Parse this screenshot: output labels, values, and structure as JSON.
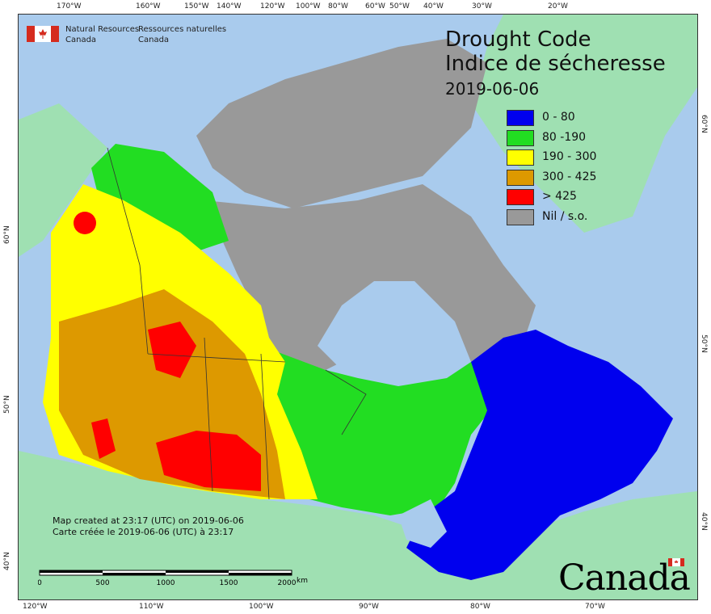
{
  "title": {
    "line1": "Drought Code",
    "line2": "Indice de sécheresse",
    "date": "2019-06-06"
  },
  "agency": {
    "en_line1": "Natural Resources",
    "en_line2": "Canada",
    "fr_line1": "Ressources naturelles",
    "fr_line2": "Canada"
  },
  "legend": [
    {
      "label": "0 - 80",
      "color": "#0000ee"
    },
    {
      "label": "80 -190",
      "color": "#22dd22"
    },
    {
      "label": "190 - 300",
      "color": "#ffff00"
    },
    {
      "label": "300 - 425",
      "color": "#dd9900"
    },
    {
      "label": "> 425",
      "color": "#ff0000"
    },
    {
      "label": "Nil / s.o.",
      "color": "#999999"
    }
  ],
  "credit": {
    "en": "Map created at 23:17 (UTC) on 2019-06-06",
    "fr": "Carte créée le 2019-06-06 (UTC) à 23:17"
  },
  "scale": {
    "labels": [
      "0",
      "500",
      "1000",
      "1500",
      "2000"
    ],
    "unit": "km"
  },
  "wordmark": "Canada",
  "graticule": {
    "top": [
      "170°W",
      "160°W",
      "150°W",
      "140°W",
      "120°W",
      "100°W",
      "80°W",
      "60°W",
      "50°W",
      "40°W",
      "30°W",
      "20°W"
    ],
    "bottom": [
      "120°W",
      "110°W",
      "100°W",
      "90°W",
      "80°W",
      "70°W"
    ],
    "left": [
      "60°N",
      "50°N",
      "40°N"
    ],
    "right": [
      "60°N",
      "50°N",
      "40°N"
    ]
  },
  "colors": {
    "ocean": "#a9cbed",
    "land_other": "#9fe0b2",
    "nil": "#999999"
  }
}
